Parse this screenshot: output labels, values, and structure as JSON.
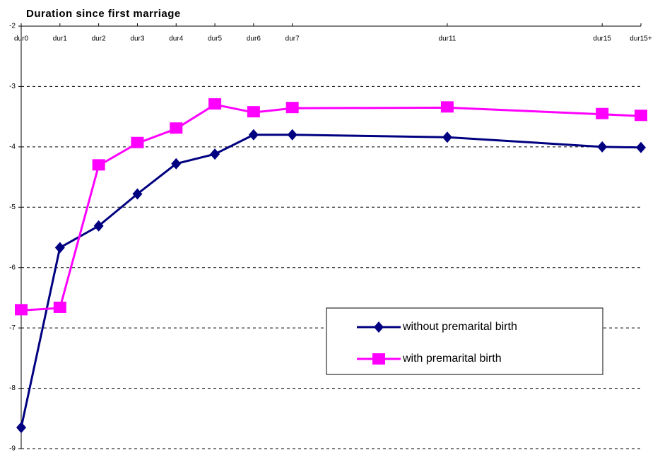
{
  "chart_data": {
    "type": "line",
    "title": "Duration since first marriage",
    "x": [
      0,
      1,
      2,
      3,
      4,
      5,
      6,
      7,
      11,
      15,
      16
    ],
    "xlim": [
      0,
      16
    ],
    "xticks": [
      {
        "value": 0,
        "label": "dur0"
      },
      {
        "value": 1,
        "label": "dur1"
      },
      {
        "value": 2,
        "label": "dur2"
      },
      {
        "value": 3,
        "label": "dur3"
      },
      {
        "value": 4,
        "label": "dur4"
      },
      {
        "value": 5,
        "label": "dur5"
      },
      {
        "value": 6,
        "label": "dur6"
      },
      {
        "value": 7,
        "label": "dur7"
      },
      {
        "value": 11,
        "label": "dur11"
      },
      {
        "value": 15,
        "label": "dur15"
      },
      {
        "value": 16,
        "label": "dur15+"
      }
    ],
    "series": [
      {
        "name": "without premarital birth",
        "color": "#000080",
        "marker": "diamond",
        "values": [
          -8.65,
          -5.67,
          -5.31,
          -4.78,
          -4.28,
          -4.12,
          -3.8,
          -3.8,
          -3.84,
          -4.0,
          -4.01
        ]
      },
      {
        "name": "with premarital birth",
        "color": "#ff00ff",
        "marker": "square",
        "values": [
          -6.71,
          -6.67,
          -4.31,
          -3.94,
          -3.7,
          -3.3,
          -3.43,
          -3.36,
          -3.35,
          -3.46,
          -3.49
        ]
      }
    ],
    "ylim": [
      -9,
      -2
    ],
    "yticks": [
      -9,
      -8,
      -7,
      -6,
      -5,
      -4,
      -3,
      -2
    ],
    "grid": true
  }
}
